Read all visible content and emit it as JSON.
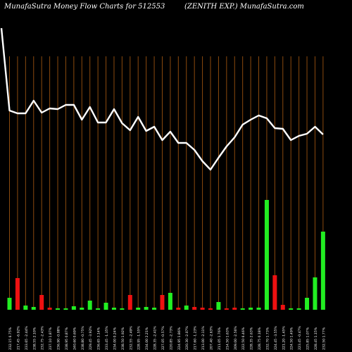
{
  "header": {
    "left": "MunafaSutra  Money Flow  Charts for 512553",
    "right": "(ZENITH EXP.) MunafaSutra.com"
  },
  "colors": {
    "background": "#000000",
    "gridline": "#8b4a0e",
    "line": "#ffffff",
    "bar_up": "#22ee22",
    "bar_down": "#ee1111"
  },
  "chart_data": {
    "type": "bar+line",
    "title": "MunafaSutra  Money Flow  Charts for 512553",
    "subtitle": "(ZENITH EXP.) MunafaSutra.com",
    "line_series": {
      "values": [
        40,
        157,
        161,
        161,
        143,
        160,
        154,
        155,
        149,
        149,
        170,
        152,
        174,
        174,
        155,
        175,
        185,
        166,
        186,
        180,
        199,
        187,
        203,
        203,
        213,
        229,
        241,
        224,
        208,
        195,
        177,
        170,
        164,
        168,
        182,
        183,
        199,
        193,
        190,
        180,
        191
      ]
    },
    "bars": {
      "heights": [
        17,
        45,
        6,
        4,
        21,
        3,
        2,
        2,
        5,
        3,
        13,
        2,
        10,
        3,
        2,
        21,
        3,
        4,
        3,
        21,
        24,
        3,
        6,
        4,
        3,
        2,
        11,
        2,
        3,
        2,
        3,
        3,
        156,
        49,
        7,
        2,
        2,
        17,
        46,
        111
      ],
      "colors": [
        "up",
        "down",
        "up",
        "up",
        "down",
        "down",
        "up",
        "up",
        "up",
        "up",
        "up",
        "up",
        "up",
        "up",
        "up",
        "down",
        "up",
        "up",
        "up",
        "down",
        "up",
        "down",
        "up",
        "down",
        "down",
        "down",
        "up",
        "down",
        "down",
        "up",
        "up",
        "up",
        "up",
        "down",
        "down",
        "up",
        "up",
        "up",
        "up",
        "up"
      ]
    },
    "x_labels": [
      "232.15 6.75%",
      "217.45 -6.92%",
      "233.65 -2.44%",
      "238.55 2.10%",
      "232.75 -2.43%",
      "237.10 1.87%",
      "236.90 -0.08%",
      "238.95 0.87%",
      "240.60 0.69%",
      "238.80 -0.75%",
      "229.45 -3.92%",
      "236.65 3.14%",
      "233.45 -1.35%",
      "234.00 0.24%",
      "238.50 1.92%",
      "232.55 -2.49%",
      "228.95 -1.55%",
      "234.00 2.21%",
      "228.35 -2.41%",
      "227.05 -0.57%",
      "220.85 -2.73%",
      "224.95 1.86%",
      "220.30 -2.07%",
      "217.60 -1.23%",
      "213.00 -2.11%",
      "207.40 -2.63%",
      "211.05 1.76%",
      "214.50 1.63%",
      "209.00 -2.56%",
      "222.50 6.46%",
      "228.35 2.63%",
      "228.75 0.18%",
      "232.70 1.73%",
      "224.45 -3.55%",
      "221.20 -1.45%",
      "224.50 1.49%",
      "223.45 -0.47%",
      "225.85 1.07%",
      "228.45 1.15%",
      "232.50 1.77%"
    ],
    "grid": true
  }
}
